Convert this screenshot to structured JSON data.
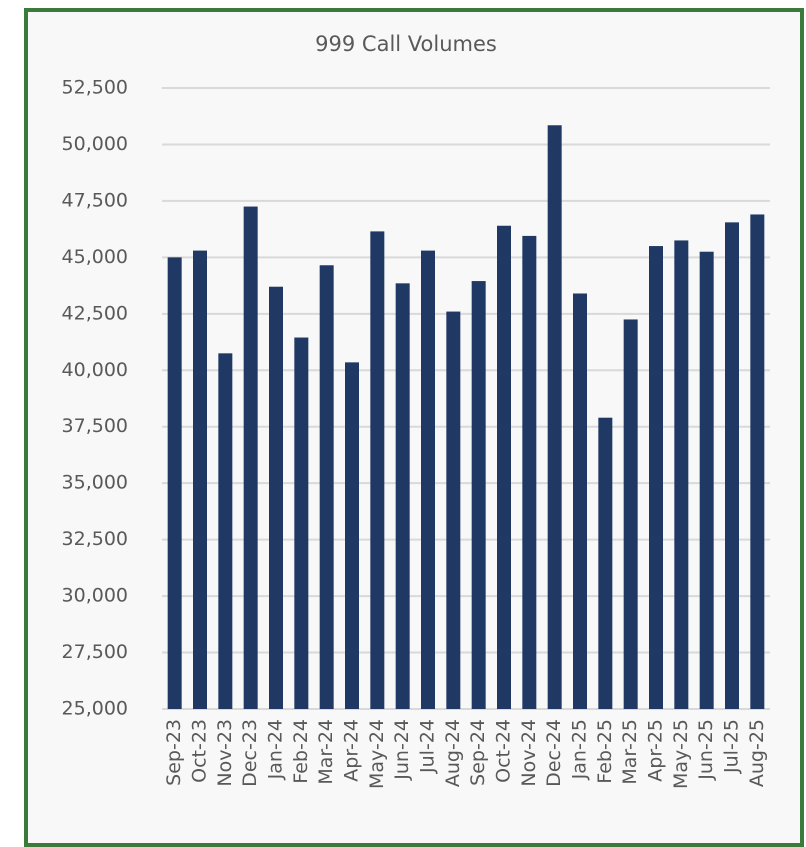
{
  "chart_data": {
    "type": "bar",
    "title": "999 Call Volumes",
    "categories": [
      "Sep-23",
      "Oct-23",
      "Nov-23",
      "Dec-23",
      "Jan-24",
      "Feb-24",
      "Mar-24",
      "Apr-24",
      "May-24",
      "Jun-24",
      "Jul-24",
      "Aug-24",
      "Sep-24",
      "Oct-24",
      "Nov-24",
      "Dec-24",
      "Jan-25",
      "Feb-25",
      "Mar-25",
      "Apr-25",
      "May-25",
      "Jun-25",
      "Jul-25",
      "Aug-25"
    ],
    "values": [
      45000,
      45300,
      40750,
      47250,
      43700,
      41450,
      44650,
      40350,
      46150,
      43850,
      45300,
      42600,
      43950,
      46400,
      45950,
      50850,
      43400,
      37900,
      42250,
      45500,
      45750,
      45250,
      46550,
      46900
    ],
    "color": "#1f3864",
    "ylim": [
      25000,
      52500
    ],
    "yticks": [
      {
        "value": 25000,
        "label": "25,000"
      },
      {
        "value": 27500,
        "label": "27,500"
      },
      {
        "value": 30000,
        "label": "30,000"
      },
      {
        "value": 32500,
        "label": "32,500"
      },
      {
        "value": 35000,
        "label": "35,000"
      },
      {
        "value": 37500,
        "label": "37,500"
      },
      {
        "value": 40000,
        "label": "40,000"
      },
      {
        "value": 42500,
        "label": "42,500"
      },
      {
        "value": 45000,
        "label": "45,000"
      },
      {
        "value": 47500,
        "label": "47,500"
      },
      {
        "value": 50000,
        "label": "50,000"
      },
      {
        "value": 52500,
        "label": "52,500"
      }
    ],
    "grid": true
  }
}
